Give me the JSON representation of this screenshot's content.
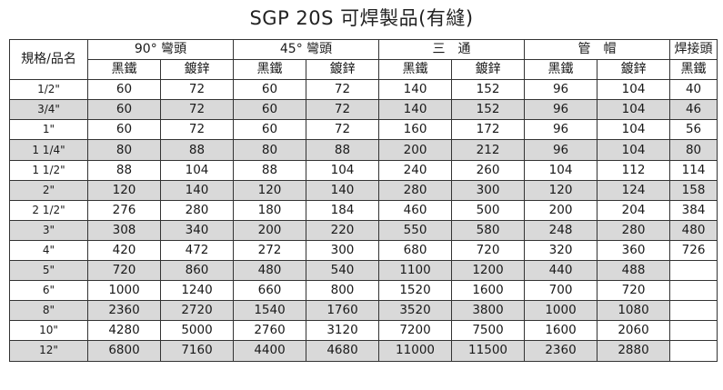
{
  "title": "SGP 20S 可焊製品(有縫)",
  "headers": {
    "spec": "規格/品名",
    "groups": [
      "90° 彎頭",
      "45° 彎頭",
      "三　通",
      "管　帽",
      "焊接頭"
    ],
    "sub": [
      "黑鐵",
      "鍍鋅",
      "黑鐵",
      "鍍鋅",
      "黑鐵",
      "鍍鋅",
      "黑鐵",
      "鍍鋅",
      "黑鐵"
    ]
  },
  "rows": [
    {
      "size": "1/2\"",
      "values": [
        "60",
        "72",
        "60",
        "72",
        "140",
        "152",
        "96",
        "104",
        "40"
      ]
    },
    {
      "size": "3/4\"",
      "values": [
        "60",
        "72",
        "60",
        "72",
        "140",
        "152",
        "96",
        "104",
        "46"
      ]
    },
    {
      "size": "1\"",
      "values": [
        "60",
        "72",
        "60",
        "72",
        "160",
        "172",
        "96",
        "104",
        "56"
      ]
    },
    {
      "size": "1 1/4\"",
      "values": [
        "80",
        "88",
        "80",
        "88",
        "200",
        "212",
        "96",
        "104",
        "80"
      ]
    },
    {
      "size": "1 1/2\"",
      "values": [
        "88",
        "104",
        "88",
        "104",
        "240",
        "260",
        "104",
        "112",
        "114"
      ]
    },
    {
      "size": "2\"",
      "values": [
        "120",
        "140",
        "120",
        "140",
        "280",
        "300",
        "120",
        "124",
        "158"
      ]
    },
    {
      "size": "2 1/2\"",
      "values": [
        "276",
        "280",
        "180",
        "184",
        "460",
        "500",
        "200",
        "204",
        "384"
      ]
    },
    {
      "size": "3\"",
      "values": [
        "308",
        "340",
        "200",
        "220",
        "550",
        "580",
        "248",
        "280",
        "480"
      ]
    },
    {
      "size": "4\"",
      "values": [
        "420",
        "472",
        "272",
        "300",
        "680",
        "720",
        "320",
        "360",
        "726"
      ]
    },
    {
      "size": "5\"",
      "values": [
        "720",
        "860",
        "480",
        "540",
        "1100",
        "1200",
        "440",
        "488",
        ""
      ]
    },
    {
      "size": "6\"",
      "values": [
        "1000",
        "1240",
        "660",
        "800",
        "1520",
        "1600",
        "700",
        "720",
        ""
      ]
    },
    {
      "size": "8\"",
      "values": [
        "2360",
        "2720",
        "1540",
        "1760",
        "3520",
        "3800",
        "1000",
        "1080",
        ""
      ]
    },
    {
      "size": "10\"",
      "values": [
        "4280",
        "5000",
        "2760",
        "3120",
        "7200",
        "7500",
        "1600",
        "2060",
        ""
      ]
    },
    {
      "size": "12\"",
      "values": [
        "6800",
        "7160",
        "4400",
        "4680",
        "11000",
        "11500",
        "2360",
        "2880",
        ""
      ]
    }
  ],
  "colors": {
    "shade": "#d9d9d9",
    "border": "#333333"
  }
}
